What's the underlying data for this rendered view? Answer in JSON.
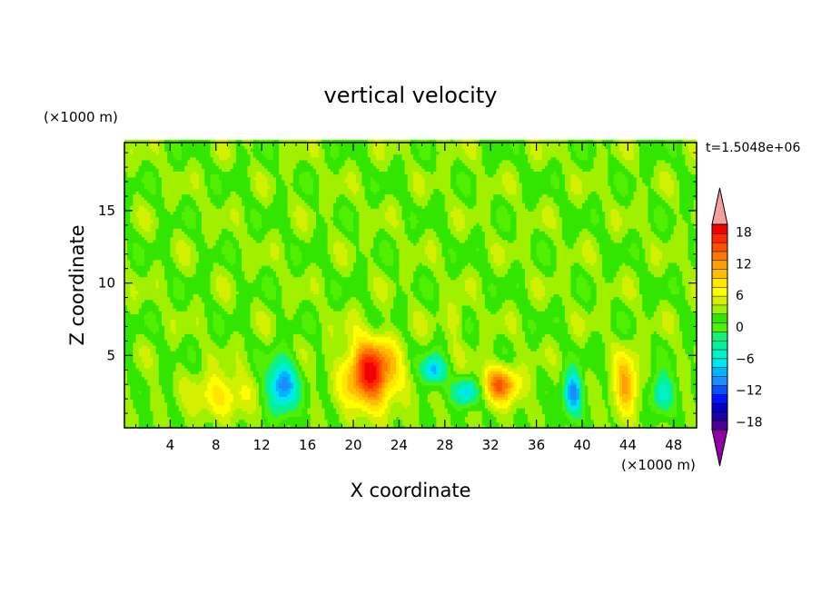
{
  "chart_data": {
    "type": "heatmap",
    "title": "vertical velocity",
    "xlabel": "X coordinate",
    "ylabel": "Z coordinate",
    "x_unit": "(×1000 m)",
    "y_unit": "(×1000 m)",
    "time_label": "t=1.5048e+06",
    "xlim": [
      0,
      50
    ],
    "ylim": [
      0,
      19.7
    ],
    "x_ticks": [
      4,
      8,
      12,
      16,
      20,
      24,
      28,
      32,
      36,
      40,
      44,
      48
    ],
    "y_ticks": [
      5,
      10,
      15
    ],
    "colorbar": {
      "ticks": [
        18,
        12,
        6,
        0,
        -6,
        -12,
        -18
      ],
      "levels": [
        -21,
        -19.5,
        -18,
        -16.5,
        -15,
        -13.5,
        -12,
        -10.5,
        -9,
        -7.5,
        -6,
        -4.5,
        -3,
        -1.5,
        0,
        1.5,
        3,
        4.5,
        6,
        7.5,
        9,
        10.5,
        12,
        13.5,
        15,
        16.5,
        18,
        19.5,
        21
      ],
      "colors": [
        "#8c00a5",
        "#4b0096",
        "#1e00a0",
        "#0000c8",
        "#0014ff",
        "#0a50ff",
        "#1e8cff",
        "#00b4ff",
        "#00e6f0",
        "#00f0c8",
        "#00f0a0",
        "#14f078",
        "#50f000",
        "#32e600",
        "#a0f000",
        "#d2f000",
        "#ffff00",
        "#ffe600",
        "#ffbe00",
        "#ffa000",
        "#ff7800",
        "#ff5000",
        "#ff2800",
        "#f00000",
        "#f5a0a0"
      ]
    },
    "features": [
      {
        "x": 8.5,
        "z": 2.3,
        "sx": 2.6,
        "sz": 1.5,
        "w": 5
      },
      {
        "x": 13.8,
        "z": 2.9,
        "sx": 1.3,
        "sz": 1.8,
        "w": -12
      },
      {
        "x": 21.5,
        "z": 3.8,
        "sx": 2.2,
        "sz": 2.3,
        "w": 14
      },
      {
        "x": 27.0,
        "z": 4.0,
        "sx": 1.0,
        "sz": 1.0,
        "w": -10
      },
      {
        "x": 30.0,
        "z": 2.5,
        "sx": 1.2,
        "sz": 0.9,
        "w": -9
      },
      {
        "x": 32.8,
        "z": 3.0,
        "sx": 1.7,
        "sz": 1.3,
        "w": 10
      },
      {
        "x": 39.2,
        "z": 2.4,
        "sx": 0.8,
        "sz": 1.5,
        "w": -12
      },
      {
        "x": 43.8,
        "z": 3.0,
        "sx": 1.1,
        "sz": 2.0,
        "w": 8
      },
      {
        "x": 47.0,
        "z": 2.4,
        "sx": 1.0,
        "sz": 1.3,
        "w": -8
      },
      {
        "x": 29.0,
        "z": 7.5,
        "sx": 0.8,
        "sz": 1.2,
        "w": 3
      }
    ]
  }
}
